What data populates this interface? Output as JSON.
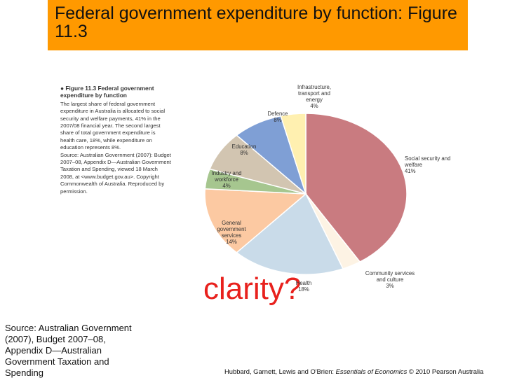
{
  "header": {
    "title": "Federal government expenditure by function: Figure 11.3"
  },
  "figure_caption": {
    "heading": "Figure 11.3  Federal government expenditure by function",
    "text": "The largest share of federal government expenditure in Australia is allocated to social security and welfare payments, 41% in the 2007/08 financial year. The second largest share of total government expenditure is health care, 18%, while expenditure on education represents 8%.",
    "source": "Source: Australian Government (2007): Budget 2007–08, Appendix D—Australian Government Taxation and Spending, viewed 18 March 2008, at <www.budget.gov.au>. Copyright Commonwealth of Australia. Reproduced by permission."
  },
  "chart_data": {
    "type": "pie",
    "categories": [
      "Social security and welfare",
      "Community services and culture",
      "Health",
      "General government services",
      "Industry and workforce",
      "Education",
      "Defence",
      "Infrastructure, transport and energy"
    ],
    "values": [
      41,
      3,
      18,
      14,
      4,
      8,
      8,
      4
    ],
    "value_labels": [
      "41%",
      "3%",
      "18%",
      "14%",
      "4%",
      "8%",
      "8%",
      "4%"
    ],
    "colors": [
      "#c97b80",
      "#fdf3e4",
      "#c9dbe9",
      "#fcc9a2",
      "#a6c68f",
      "#d2c5b1",
      "#7f9fd5",
      "#fff0b0"
    ]
  },
  "overlay_text": "clarity?",
  "source": "Source: Australian Government (2007), Budget 2007–08, Appendix D—Australian Government Taxation and Spending",
  "credit": {
    "authors": "Hubbard, Garnett, Lewis and O'Brien: ",
    "book": "Essentials of Economics",
    "rest": " © 2010 Pearson Australia"
  }
}
